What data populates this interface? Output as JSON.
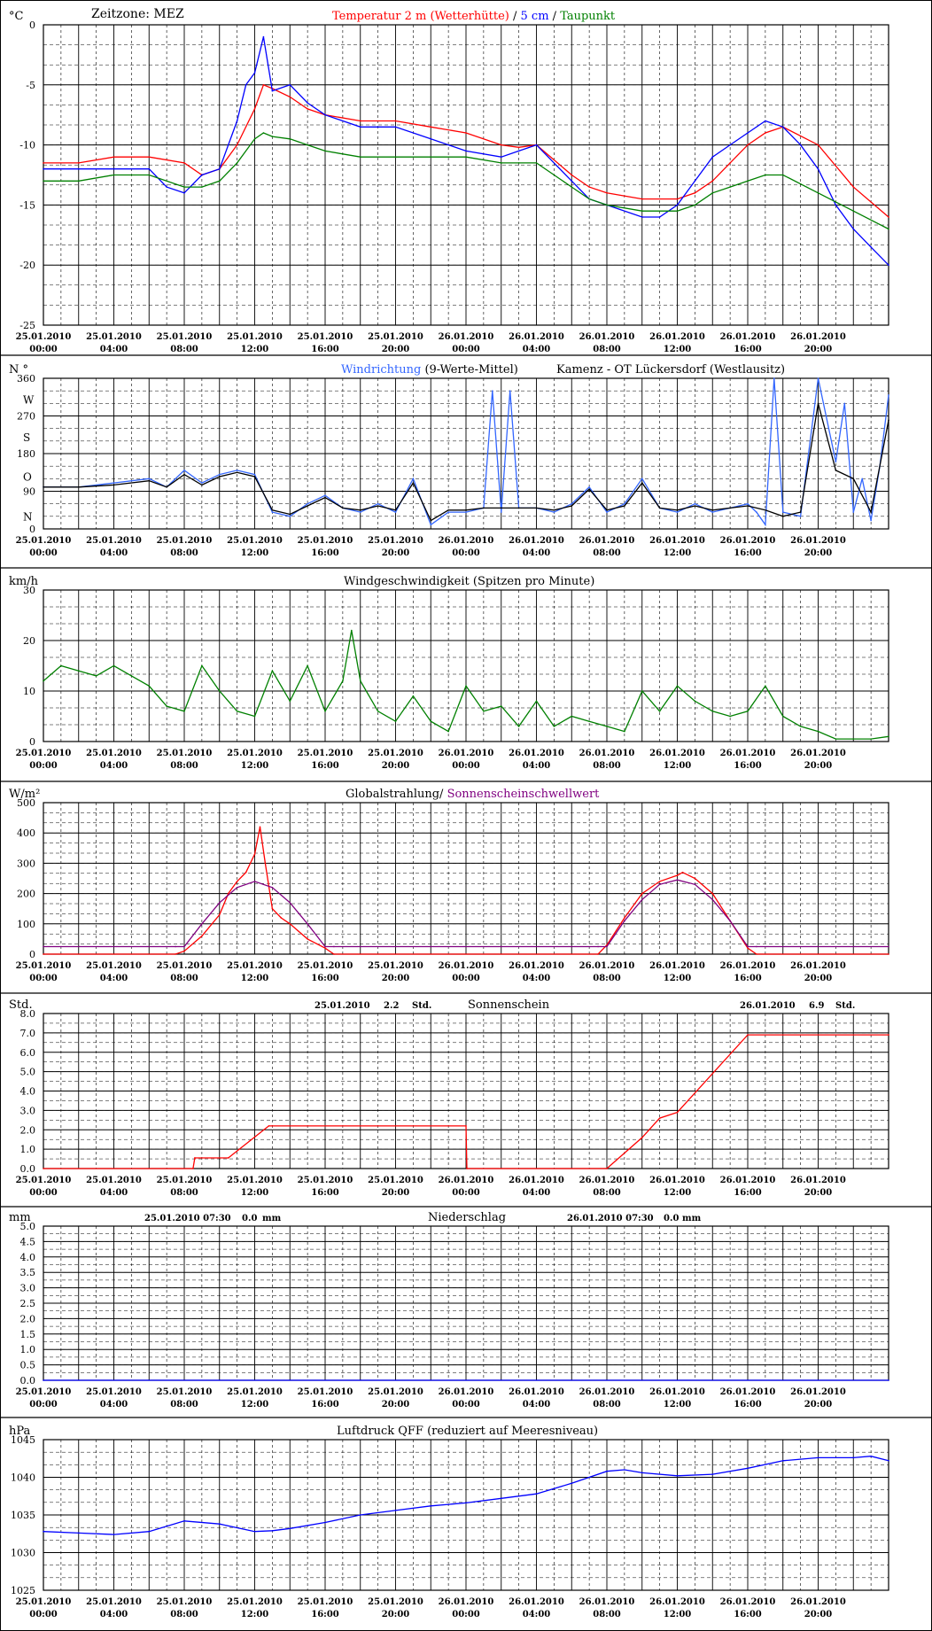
{
  "x_ticks": [
    {
      "date": "25.01.2010",
      "time": "00:00"
    },
    {
      "date": "25.01.2010",
      "time": "04:00"
    },
    {
      "date": "25.01.2010",
      "time": "08:00"
    },
    {
      "date": "25.01.2010",
      "time": "12:00"
    },
    {
      "date": "25.01.2010",
      "time": "16:00"
    },
    {
      "date": "25.01.2010",
      "time": "20:00"
    },
    {
      "date": "26.01.2010",
      "time": "00:00"
    },
    {
      "date": "26.01.2010",
      "time": "04:00"
    },
    {
      "date": "26.01.2010",
      "time": "08:00"
    },
    {
      "date": "26.01.2010",
      "time": "12:00"
    },
    {
      "date": "26.01.2010",
      "time": "16:00"
    },
    {
      "date": "26.01.2010",
      "time": "20:00"
    }
  ],
  "chart_data": [
    {
      "id": "temperature",
      "type": "line",
      "x_unit": "hours since 25.01.2010 00:00",
      "unit_label": "°C",
      "header_left": "Zeitzone:  MEZ",
      "title_parts": [
        {
          "text": "Temperatur 2 m (Wetterhütte)",
          "color": "#ff0000"
        },
        {
          "text": "  /  ",
          "color": "#000000"
        },
        {
          "text": "5 cm",
          "color": "#0000ff"
        },
        {
          "text": " / ",
          "color": "#000000"
        },
        {
          "text": "Taupunkt",
          "color": "#008000"
        }
      ],
      "ylim": [
        -25,
        0
      ],
      "y_ticks": [
        0,
        -5,
        -10,
        -15,
        -20,
        -25
      ],
      "y_tick_labels": [
        "0",
        "-5",
        "-10",
        "-15",
        "-20",
        "-25"
      ],
      "series": [
        {
          "name": "Temperatur 2 m (Wetterhütte)",
          "color": "#ff0000",
          "x": [
            0,
            2,
            4,
            6,
            8,
            9,
            10,
            11,
            12,
            12.5,
            13,
            14,
            15,
            16,
            18,
            20,
            22,
            24,
            26,
            27,
            28,
            30,
            31,
            32,
            34,
            36,
            37,
            38,
            39,
            40,
            41,
            42,
            44,
            46,
            48
          ],
          "y": [
            -11.5,
            -11.5,
            -11,
            -11,
            -11.5,
            -12.5,
            -12,
            -10,
            -7,
            -5,
            -5.3,
            -6,
            -7,
            -7.5,
            -8,
            -8,
            -8.5,
            -9,
            -10,
            -10.2,
            -10,
            -12.5,
            -13.5,
            -14,
            -14.5,
            -14.5,
            -14,
            -13,
            -11.5,
            -10,
            -9,
            -8.5,
            -10,
            -13.5,
            -16
          ]
        },
        {
          "name": "5 cm",
          "color": "#0000ff",
          "x": [
            0,
            2,
            4,
            6,
            7,
            8,
            9,
            10,
            11,
            11.5,
            12,
            12.5,
            13,
            14,
            15,
            16,
            18,
            20,
            22,
            24,
            26,
            27,
            28,
            30,
            31,
            32,
            34,
            35,
            36,
            37,
            38,
            39,
            40,
            41,
            42,
            43,
            44,
            45,
            46,
            47,
            48
          ],
          "y": [
            -12,
            -12,
            -12,
            -12,
            -13.5,
            -14,
            -12.5,
            -12,
            -8,
            -5,
            -4,
            -1,
            -5.5,
            -5,
            -6.5,
            -7.5,
            -8.5,
            -8.5,
            -9.5,
            -10.5,
            -11,
            -10.5,
            -10,
            -13,
            -14.5,
            -15,
            -16,
            -16,
            -15,
            -13,
            -11,
            -10,
            -9,
            -8,
            -8.5,
            -10,
            -12,
            -15,
            -17,
            -18.5,
            -20
          ]
        },
        {
          "name": "Taupunkt",
          "color": "#008000",
          "x": [
            0,
            2,
            4,
            6,
            8,
            9,
            10,
            11,
            12,
            12.5,
            13,
            14,
            15,
            16,
            18,
            20,
            22,
            24,
            26,
            27,
            28,
            30,
            31,
            32,
            34,
            36,
            37,
            38,
            39,
            40,
            41,
            42,
            44,
            46,
            48
          ],
          "y": [
            -13,
            -13,
            -12.5,
            -12.5,
            -13.5,
            -13.5,
            -13,
            -11.5,
            -9.5,
            -9,
            -9.3,
            -9.5,
            -10,
            -10.5,
            -11,
            -11,
            -11,
            -11,
            -11.5,
            -11.5,
            -11.5,
            -13.5,
            -14.5,
            -15,
            -15.5,
            -15.5,
            -15,
            -14,
            -13.5,
            -13,
            -12.5,
            -12.5,
            -14,
            -15.5,
            -17
          ]
        }
      ]
    },
    {
      "id": "wind_direction",
      "type": "line",
      "x_unit": "hours since 25.01.2010 00:00",
      "unit_label": "N  °",
      "title_parts": [
        {
          "text": "Windrichtung",
          "color": "#3366ff"
        },
        {
          "text": " (9-Werte-Mittel)",
          "color": "#000000"
        }
      ],
      "title_right": "Kamenz - OT Lückersdorf (Westlausitz)",
      "ylim": [
        0,
        360
      ],
      "y_ticks": [
        360,
        270,
        180,
        90,
        0
      ],
      "y_tick_labels": [
        "360",
        "270",
        "180",
        "90",
        "0"
      ],
      "compass_labels": [
        "W",
        "S",
        "O",
        "N"
      ],
      "series": [
        {
          "name": "Windrichtung",
          "color": "#3366ff",
          "x": [
            0,
            2,
            4,
            6,
            7,
            8,
            9,
            10,
            11,
            12,
            13,
            14,
            15,
            16,
            17,
            18,
            19,
            20,
            21,
            22,
            23,
            24,
            25,
            25.5,
            26,
            26.5,
            27,
            28,
            29,
            30,
            31,
            32,
            33,
            34,
            35,
            36,
            37,
            38,
            39,
            40,
            40.5,
            41,
            41.5,
            42,
            43,
            44,
            45,
            45.5,
            46,
            46.5,
            47,
            47.5,
            48
          ],
          "y": [
            100,
            100,
            110,
            120,
            100,
            140,
            110,
            130,
            140,
            130,
            40,
            30,
            60,
            80,
            50,
            40,
            60,
            40,
            120,
            10,
            40,
            40,
            50,
            330,
            40,
            330,
            50,
            50,
            40,
            60,
            100,
            40,
            60,
            120,
            50,
            40,
            60,
            40,
            50,
            60,
            40,
            10,
            360,
            40,
            30,
            360,
            160,
            300,
            40,
            120,
            20,
            150,
            320
          ]
        },
        {
          "name": "(9-Werte-Mittel)",
          "color": "#000000",
          "x": [
            0,
            2,
            4,
            6,
            7,
            8,
            9,
            10,
            11,
            12,
            13,
            14,
            15,
            16,
            17,
            18,
            19,
            20,
            21,
            22,
            23,
            24,
            25,
            26,
            27,
            28,
            29,
            30,
            31,
            32,
            33,
            34,
            35,
            36,
            37,
            38,
            39,
            40,
            41,
            42,
            43,
            44,
            45,
            46,
            47,
            48
          ],
          "y": [
            100,
            100,
            105,
            115,
            100,
            130,
            105,
            125,
            135,
            125,
            45,
            35,
            55,
            75,
            50,
            45,
            55,
            45,
            110,
            20,
            45,
            45,
            50,
            50,
            50,
            50,
            45,
            55,
            95,
            45,
            55,
            110,
            50,
            45,
            55,
            45,
            50,
            55,
            45,
            30,
            40,
            300,
            140,
            120,
            40,
            260
          ]
        }
      ]
    },
    {
      "id": "wind_speed",
      "type": "line",
      "x_unit": "hours since 25.01.2010 00:00",
      "unit_label": "km/h",
      "title_parts": [
        {
          "text": "Windgeschwindigkeit (Spitzen pro Minute)",
          "color": "#000000"
        }
      ],
      "ylim": [
        0,
        30
      ],
      "y_ticks": [
        30,
        20,
        10,
        0
      ],
      "y_tick_labels": [
        "30",
        "20",
        "10",
        "0"
      ],
      "series": [
        {
          "name": "Windgeschwindigkeit",
          "color": "#008000",
          "x": [
            0,
            1,
            2,
            3,
            4,
            5,
            6,
            7,
            8,
            9,
            10,
            11,
            12,
            13,
            14,
            15,
            16,
            17,
            17.5,
            18,
            19,
            20,
            21,
            22,
            23,
            24,
            25,
            26,
            27,
            28,
            29,
            30,
            31,
            32,
            33,
            34,
            35,
            36,
            37,
            38,
            39,
            40,
            41,
            42,
            43,
            44,
            45,
            46,
            47,
            48
          ],
          "y": [
            12,
            15,
            14,
            13,
            15,
            13,
            11,
            7,
            6,
            15,
            10,
            6,
            5,
            14,
            8,
            15,
            6,
            12,
            22,
            12,
            6,
            4,
            9,
            4,
            2,
            11,
            6,
            7,
            3,
            8,
            3,
            5,
            4,
            3,
            2,
            10,
            6,
            11,
            8,
            6,
            5,
            6,
            11,
            5,
            3,
            2,
            0.5,
            0.5,
            0.5,
            1
          ]
        }
      ]
    },
    {
      "id": "global_radiation",
      "type": "line",
      "x_unit": "hours since 25.01.2010 00:00",
      "unit_label": "W/m²",
      "title_parts": [
        {
          "text": "Globalstrahlung/",
          "color": "#000000"
        },
        {
          "text": " Sonnenscheinschwellwert",
          "color": "#800080"
        }
      ],
      "ylim": [
        0,
        500
      ],
      "y_ticks": [
        500,
        400,
        300,
        200,
        100,
        0
      ],
      "y_tick_labels": [
        "500",
        "400",
        "300",
        "200",
        "100",
        "0"
      ],
      "series": [
        {
          "name": "Globalstrahlung",
          "color": "#ff0000",
          "x": [
            0,
            7.5,
            8,
            9,
            10,
            10.5,
            11,
            11.5,
            12,
            12.3,
            12.6,
            13,
            13.5,
            14,
            15,
            16,
            16.5,
            31.5,
            32,
            33,
            34,
            35,
            36,
            36.3,
            37,
            38,
            39,
            40,
            40.5,
            48
          ],
          "y": [
            0,
            0,
            10,
            60,
            130,
            200,
            240,
            270,
            330,
            420,
            300,
            150,
            120,
            100,
            50,
            20,
            0,
            0,
            30,
            120,
            200,
            240,
            260,
            270,
            250,
            200,
            110,
            20,
            0,
            0
          ]
        },
        {
          "name": "Sonnenscheinschwellwert",
          "color": "#800080",
          "x": [
            0,
            7.5,
            8,
            9,
            10,
            11,
            12,
            13,
            14,
            15,
            16,
            16.5,
            31.5,
            32,
            33,
            34,
            35,
            36,
            37,
            38,
            39,
            40,
            40.5,
            48
          ],
          "y": [
            25,
            25,
            25,
            100,
            170,
            220,
            240,
            220,
            170,
            100,
            25,
            25,
            25,
            25,
            110,
            180,
            230,
            245,
            230,
            180,
            110,
            25,
            25,
            25
          ]
        }
      ]
    },
    {
      "id": "sunshine",
      "type": "line",
      "x_unit": "hours since 25.01.2010 00:00",
      "unit_label": "Std.",
      "title_parts": [
        {
          "text": "Sonnenschein",
          "color": "#000000"
        }
      ],
      "annotations": [
        {
          "date": "25.01.2010",
          "value": "2.2",
          "unit": "Std."
        },
        {
          "date": "26.01.2010",
          "value": "6.9",
          "unit": "Std."
        }
      ],
      "ylim": [
        0,
        8
      ],
      "y_ticks": [
        8,
        7,
        6,
        5,
        4,
        3,
        2,
        1,
        0
      ],
      "y_tick_labels": [
        "8.0",
        "7.0",
        "6.0",
        "5.0",
        "4.0",
        "3.0",
        "2.0",
        "1.0",
        "0.0"
      ],
      "series": [
        {
          "name": "Sonnenschein",
          "color": "#ff0000",
          "x": [
            0,
            8.5,
            8.6,
            10.5,
            12.8,
            13,
            24,
            24.05,
            32,
            34,
            35,
            36,
            40,
            48
          ],
          "y": [
            0,
            0,
            0.55,
            0.55,
            2.2,
            2.2,
            2.2,
            0,
            0,
            1.6,
            2.6,
            2.9,
            6.9,
            6.9
          ]
        }
      ]
    },
    {
      "id": "precipitation",
      "type": "line",
      "x_unit": "hours since 25.01.2010 00:00",
      "unit_label": "mm",
      "title_parts": [
        {
          "text": "Niederschlag",
          "color": "#000000"
        }
      ],
      "annotations": [
        {
          "date": "25.01.2010 07:30",
          "value": "0.0",
          "unit": "mm"
        },
        {
          "date": "26.01.2010 07:30",
          "value": "0.0",
          "unit": "mm"
        }
      ],
      "ylim": [
        0,
        5
      ],
      "y_ticks": [
        5,
        4.5,
        4,
        3.5,
        3,
        2.5,
        2,
        1.5,
        1,
        0.5,
        0
      ],
      "y_tick_labels": [
        "5.0",
        "4.5",
        "4.0",
        "3.5",
        "3.0",
        "2.5",
        "2.0",
        "1.5",
        "1.0",
        "0.5",
        "0.0"
      ],
      "series": [
        {
          "name": "Niederschlag",
          "color": "#0000ff",
          "x": [
            0,
            48
          ],
          "y": [
            0,
            0
          ]
        }
      ]
    },
    {
      "id": "pressure",
      "type": "line",
      "x_unit": "hours since 25.01.2010 00:00",
      "unit_label": "hPa",
      "title_parts": [
        {
          "text": "Luftdruck QFF (reduziert auf Meeresniveau)",
          "color": "#000000"
        }
      ],
      "ylim": [
        1025,
        1045
      ],
      "y_ticks": [
        1045,
        1040,
        1035,
        1030,
        1025
      ],
      "y_tick_labels": [
        "1045",
        "1040",
        "1035",
        "1030",
        "1025"
      ],
      "series": [
        {
          "name": "Luftdruck QFF",
          "color": "#0000ff",
          "x": [
            0,
            2,
            4,
            6,
            8,
            10,
            12,
            13,
            14,
            16,
            18,
            20,
            22,
            24,
            26,
            28,
            30,
            32,
            33,
            34,
            36,
            38,
            40,
            42,
            44,
            46,
            47,
            48
          ],
          "y": [
            1032.8,
            1032.6,
            1032.4,
            1032.8,
            1034.2,
            1033.8,
            1032.8,
            1032.9,
            1033.2,
            1034.0,
            1035.0,
            1035.6,
            1036.2,
            1036.6,
            1037.2,
            1037.8,
            1039.2,
            1040.8,
            1041.0,
            1040.6,
            1040.2,
            1040.4,
            1041.2,
            1042.2,
            1042.6,
            1042.6,
            1042.8,
            1042.2
          ]
        }
      ]
    }
  ]
}
